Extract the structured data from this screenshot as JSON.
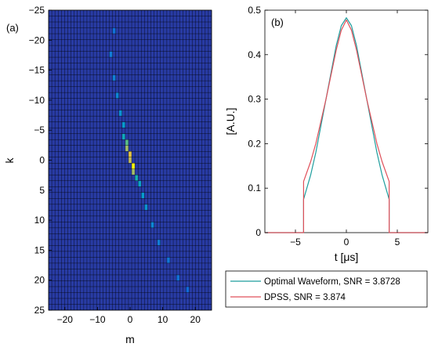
{
  "chart_data": [
    {
      "type": "heatmap",
      "panel_label": "(a)",
      "xlabel": "m",
      "ylabel": "k",
      "xlim": [
        -25,
        25
      ],
      "ylim": [
        25,
        -25
      ],
      "y_reversed": true,
      "x_ticks": [
        -20,
        -10,
        0,
        10,
        20
      ],
      "x_tick_labels": [
        "−20",
        "−10",
        "0",
        "10",
        "20"
      ],
      "y_ticks": [
        -25,
        -20,
        -15,
        -10,
        -5,
        0,
        5,
        10,
        15,
        20,
        25
      ],
      "y_tick_labels": [
        "−25",
        "−20",
        "−15",
        "−10",
        "−5",
        "0",
        "5",
        "10",
        "15",
        "20",
        "25"
      ],
      "colormap": "parula",
      "description_of_values": "bright diagonal ridge along k ≈ -m, peaking near the center",
      "cells": [
        {
          "m": -5,
          "k": -22,
          "v": 0.25
        },
        {
          "m": -6,
          "k": -18,
          "v": 0.3
        },
        {
          "m": -5,
          "k": -14,
          "v": 0.32
        },
        {
          "m": -4,
          "k": -11,
          "v": 0.35
        },
        {
          "m": -3,
          "k": -8,
          "v": 0.4
        },
        {
          "m": -2,
          "k": -6,
          "v": 0.45
        },
        {
          "m": -2,
          "k": -4,
          "v": 0.55
        },
        {
          "m": -1,
          "k": -3,
          "v": 0.7
        },
        {
          "m": -1,
          "k": -2,
          "v": 0.8
        },
        {
          "m": 0,
          "k": -1,
          "v": 0.92
        },
        {
          "m": 0,
          "k": 0,
          "v": 0.85
        },
        {
          "m": 1,
          "k": 1,
          "v": 1.0
        },
        {
          "m": 1,
          "k": 2,
          "v": 0.8
        },
        {
          "m": 2,
          "k": 3,
          "v": 0.6
        },
        {
          "m": 3,
          "k": 4,
          "v": 0.5
        },
        {
          "m": 4,
          "k": 6,
          "v": 0.45
        },
        {
          "m": 5,
          "k": 8,
          "v": 0.4
        },
        {
          "m": 7,
          "k": 11,
          "v": 0.35
        },
        {
          "m": 9,
          "k": 14,
          "v": 0.3
        },
        {
          "m": 12,
          "k": 17,
          "v": 0.27
        },
        {
          "m": 15,
          "k": 20,
          "v": 0.25
        },
        {
          "m": 18,
          "k": 22,
          "v": 0.22
        }
      ]
    },
    {
      "type": "line",
      "panel_label": "(b)",
      "xlabel": "t [μs]",
      "ylabel": "[A.U.]",
      "xlim": [
        -8,
        8
      ],
      "ylim": [
        0,
        0.5
      ],
      "x_ticks": [
        -5,
        0,
        5
      ],
      "x_tick_labels": [
        "−5",
        "0",
        "5"
      ],
      "y_ticks": [
        0,
        0.1,
        0.2,
        0.3,
        0.4,
        0.5
      ],
      "y_tick_labels": [
        "0",
        "0.1",
        "0.2",
        "0.3",
        "0.4",
        "0.5"
      ],
      "legend_position": "below",
      "series": [
        {
          "name": "Optimal Waveform, SNR = 3.8728",
          "color": "#1f9e9e",
          "x": [
            -8,
            -4.2,
            -4.2,
            -3.5,
            -3,
            -2.5,
            -2,
            -1.5,
            -1,
            -0.5,
            0,
            0.5,
            1,
            1.5,
            2,
            2.5,
            3,
            3.5,
            4.2,
            4.2,
            8
          ],
          "y": [
            0,
            0,
            0.075,
            0.13,
            0.18,
            0.24,
            0.3,
            0.36,
            0.42,
            0.465,
            0.483,
            0.465,
            0.42,
            0.36,
            0.3,
            0.24,
            0.18,
            0.13,
            0.075,
            0,
            0
          ]
        },
        {
          "name": "DPSS, SNR = 3.874",
          "color": "#e0505a",
          "x": [
            -8,
            -4.2,
            -4.2,
            -3.5,
            -3,
            -2.5,
            -2,
            -1.5,
            -1,
            -0.5,
            0,
            0.5,
            1,
            1.5,
            2,
            2.5,
            3,
            3.5,
            4.2,
            4.2,
            8
          ],
          "y": [
            0,
            0,
            0.115,
            0.16,
            0.2,
            0.25,
            0.3,
            0.355,
            0.41,
            0.455,
            0.478,
            0.455,
            0.41,
            0.355,
            0.3,
            0.25,
            0.2,
            0.16,
            0.115,
            0,
            0
          ]
        }
      ]
    }
  ]
}
